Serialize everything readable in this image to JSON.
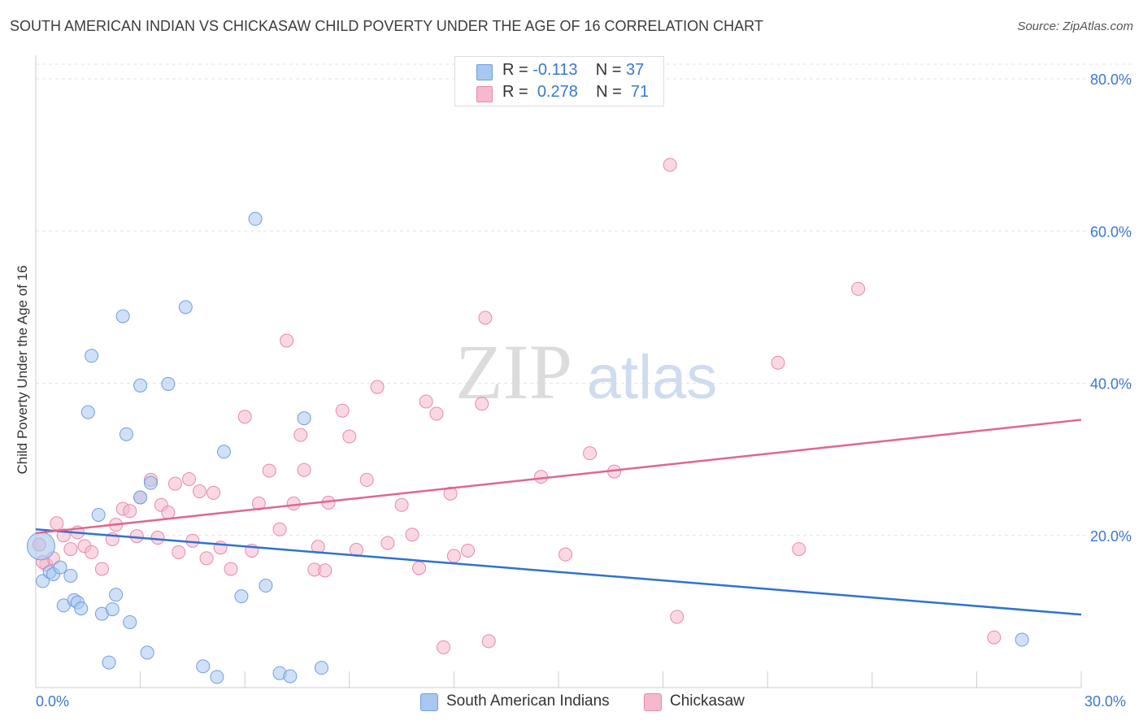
{
  "title": "SOUTH AMERICAN INDIAN VS CHICKASAW CHILD POVERTY UNDER THE AGE OF 16 CORRELATION CHART",
  "source": "Source: ZipAtlas.com",
  "watermark": {
    "zip": "ZIP",
    "atlas": "atlas"
  },
  "legend_top": {
    "rows": [
      {
        "r_label": "R =",
        "r_value": "-0.113",
        "n_label": "N =",
        "n_value": "37",
        "color": "#a9c7ef"
      },
      {
        "r_label": "R =",
        "r_value": "0.278",
        "n_label": "N =",
        "n_value": "71",
        "color": "#f5b8cc"
      }
    ]
  },
  "chart_data": {
    "type": "scatter",
    "title": "SOUTH AMERICAN INDIAN VS CHICKASAW CHILD POVERTY UNDER THE AGE OF 16 CORRELATION CHART",
    "xlabel": "",
    "ylabel": "Child Poverty Under the Age of 16",
    "xlim": [
      0,
      30
    ],
    "ylim": [
      0,
      80
    ],
    "x_tick_labels": [
      "0.0%",
      "30.0%"
    ],
    "y_tick_labels": [
      "20.0%",
      "40.0%",
      "60.0%",
      "80.0%"
    ],
    "y_ticks": [
      20,
      40,
      60,
      80
    ],
    "grid": true,
    "series": [
      {
        "name": "South American Indians",
        "color": "#6f9fe0",
        "fill": "#a9c7ef",
        "line_color": "#2f72d0",
        "trend": {
          "x": [
            0,
            30
          ],
          "y": [
            20.8,
            9.6
          ]
        },
        "points": [
          [
            0.2,
            14.0
          ],
          [
            0.4,
            15.2
          ],
          [
            0.5,
            14.9
          ],
          [
            0.7,
            15.8
          ],
          [
            0.8,
            10.8
          ],
          [
            1.0,
            14.7
          ],
          [
            1.1,
            11.5
          ],
          [
            1.2,
            11.2
          ],
          [
            1.3,
            10.4
          ],
          [
            1.5,
            36.2
          ],
          [
            1.6,
            43.6
          ],
          [
            1.8,
            22.7
          ],
          [
            1.9,
            9.7
          ],
          [
            2.1,
            3.3
          ],
          [
            2.2,
            10.3
          ],
          [
            2.3,
            12.2
          ],
          [
            2.5,
            48.8
          ],
          [
            2.6,
            33.3
          ],
          [
            2.7,
            8.6
          ],
          [
            3.0,
            25.0
          ],
          [
            3.0,
            39.7
          ],
          [
            3.2,
            4.6
          ],
          [
            3.3,
            26.9
          ],
          [
            3.8,
            39.9
          ],
          [
            4.3,
            50.0
          ],
          [
            4.8,
            2.8
          ],
          [
            5.2,
            1.4
          ],
          [
            5.4,
            31.0
          ],
          [
            5.9,
            12.0
          ],
          [
            6.3,
            61.6
          ],
          [
            6.6,
            13.4
          ],
          [
            7.0,
            1.9
          ],
          [
            7.3,
            1.5
          ],
          [
            7.7,
            35.4
          ],
          [
            8.2,
            2.6
          ],
          [
            28.3,
            6.3
          ],
          [
            0.15,
            18.6
          ]
        ]
      },
      {
        "name": "Chickasaw",
        "color": "#e78aa8",
        "fill": "#f5b8cc",
        "line_color": "#e06690",
        "trend": {
          "x": [
            0,
            30
          ],
          "y": [
            20.3,
            35.2
          ]
        },
        "points": [
          [
            0.1,
            18.8
          ],
          [
            0.3,
            16.2
          ],
          [
            0.5,
            17.0
          ],
          [
            0.6,
            21.6
          ],
          [
            0.8,
            20.0
          ],
          [
            1.0,
            18.2
          ],
          [
            1.2,
            20.4
          ],
          [
            1.4,
            18.6
          ],
          [
            1.6,
            17.8
          ],
          [
            1.9,
            15.6
          ],
          [
            2.2,
            19.5
          ],
          [
            2.3,
            21.4
          ],
          [
            2.5,
            23.5
          ],
          [
            2.7,
            23.2
          ],
          [
            2.9,
            19.9
          ],
          [
            3.0,
            25.0
          ],
          [
            3.3,
            27.3
          ],
          [
            3.5,
            19.7
          ],
          [
            3.6,
            24.0
          ],
          [
            3.8,
            23.0
          ],
          [
            4.0,
            26.8
          ],
          [
            4.1,
            17.8
          ],
          [
            4.4,
            27.4
          ],
          [
            4.5,
            19.3
          ],
          [
            4.7,
            25.8
          ],
          [
            4.9,
            17.0
          ],
          [
            5.1,
            25.6
          ],
          [
            5.3,
            18.4
          ],
          [
            5.6,
            15.6
          ],
          [
            6.0,
            35.6
          ],
          [
            6.2,
            18.0
          ],
          [
            6.4,
            24.2
          ],
          [
            6.7,
            28.5
          ],
          [
            7.0,
            20.8
          ],
          [
            7.2,
            45.6
          ],
          [
            7.4,
            24.2
          ],
          [
            7.6,
            33.2
          ],
          [
            7.7,
            28.6
          ],
          [
            8.0,
            15.5
          ],
          [
            8.1,
            18.5
          ],
          [
            8.3,
            15.4
          ],
          [
            8.4,
            24.3
          ],
          [
            8.8,
            36.4
          ],
          [
            9.0,
            33.0
          ],
          [
            9.2,
            18.1
          ],
          [
            9.5,
            27.3
          ],
          [
            9.8,
            39.5
          ],
          [
            10.1,
            19.0
          ],
          [
            10.5,
            24.0
          ],
          [
            10.8,
            20.1
          ],
          [
            11.0,
            15.7
          ],
          [
            11.2,
            37.6
          ],
          [
            11.5,
            36.0
          ],
          [
            11.7,
            5.3
          ],
          [
            11.9,
            25.5
          ],
          [
            12.0,
            17.3
          ],
          [
            12.4,
            18.0
          ],
          [
            12.8,
            37.3
          ],
          [
            12.9,
            48.6
          ],
          [
            13.0,
            6.1
          ],
          [
            14.5,
            27.7
          ],
          [
            15.2,
            17.5
          ],
          [
            15.9,
            30.8
          ],
          [
            16.6,
            28.4
          ],
          [
            18.2,
            68.7
          ],
          [
            18.4,
            9.3
          ],
          [
            21.3,
            42.7
          ],
          [
            21.9,
            18.2
          ],
          [
            23.6,
            52.4
          ],
          [
            27.5,
            6.6
          ],
          [
            0.2,
            16.5
          ]
        ]
      }
    ]
  }
}
